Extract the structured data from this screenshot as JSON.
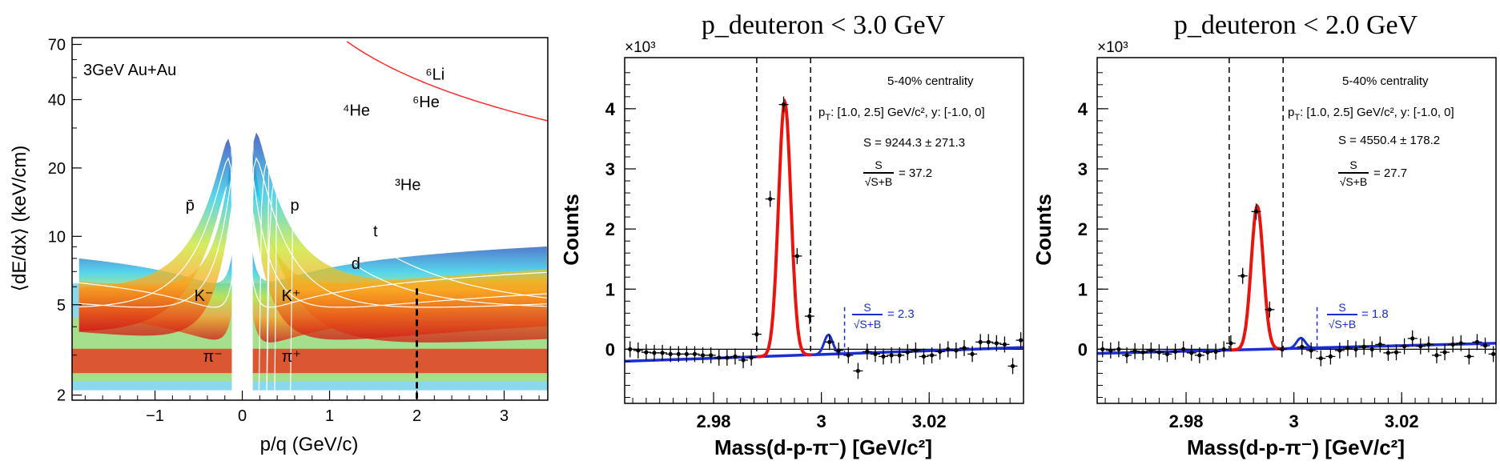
{
  "colors": {
    "fit_signal": "#e8150f",
    "fit_background": "#1a2ed1",
    "annotation_blue": "#1a2ed1",
    "data_points": "#000000",
    "reference_curve": "#ffffff",
    "li6_curve": "#ff2a2a"
  },
  "chart_data": [
    {
      "type": "heatmap",
      "title": "",
      "xlabel": "p/q (GeV/c)",
      "ylabel": "⟨dE/dx⟩ (keV/cm)",
      "xlim": [
        -1.95,
        3.5
      ],
      "ylim": [
        1.9,
        75
      ],
      "yscale": "log",
      "x_ticks": [
        -1,
        0,
        1,
        2,
        3
      ],
      "x_tick_labels": [
        "−1",
        "0",
        "1",
        "2",
        "3"
      ],
      "y_ticks": [
        2,
        5,
        10,
        20,
        40,
        70
      ],
      "y_tick_labels": [
        "2",
        "5",
        "10",
        "20",
        "40",
        "70"
      ],
      "colormap": "rainbow (blue low, red high)",
      "label": "3GeV Au+Au",
      "cut_line_x": 2.0,
      "bands": [
        {
          "name": "π⁻",
          "label_x": -0.45,
          "label_y": 2.8
        },
        {
          "name": "K⁻",
          "label_x": -0.55,
          "label_y": 5.2
        },
        {
          "name": "p̄",
          "label_x": -0.65,
          "label_y": 13
        },
        {
          "name": "π⁺",
          "label_x": 0.45,
          "label_y": 2.8
        },
        {
          "name": "K⁺",
          "label_x": 0.45,
          "label_y": 5.2
        },
        {
          "name": "p",
          "label_x": 0.55,
          "label_y": 13
        },
        {
          "name": "d",
          "label_x": 1.25,
          "label_y": 7.2
        },
        {
          "name": "t",
          "label_x": 1.5,
          "label_y": 10
        },
        {
          "name": "³He",
          "label_x": 1.75,
          "label_y": 16
        },
        {
          "name": "⁴He",
          "label_x": 1.15,
          "label_y": 34
        },
        {
          "name": "⁶He",
          "label_x": 1.95,
          "label_y": 37
        },
        {
          "name": "⁶Li",
          "label_x": 2.1,
          "label_y": 49
        }
      ]
    },
    {
      "type": "scatter",
      "title": "p_deuteron < 3.0 GeV",
      "xlabel": "Mass(d-p-π⁻) [GeV/c²]",
      "ylabel": "Counts",
      "y_multiplier": "×10³",
      "xlim": [
        2.9635,
        3.0375
      ],
      "ylim": [
        -0.9,
        4.85
      ],
      "x_ticks": [
        2.98,
        3.0,
        3.02
      ],
      "x_tick_labels": [
        "2.98",
        "3",
        "3.02"
      ],
      "y_ticks": [
        0,
        1,
        2,
        3,
        4
      ],
      "y_tick_labels": [
        "0",
        "1",
        "2",
        "3",
        "4"
      ],
      "signal_window": [
        2.988,
        2.998
      ],
      "side_window": [
        2.998,
        3.0043
      ],
      "signal_peak": {
        "amplitude": 4.22,
        "mean": 2.9932,
        "sigma": 0.00115,
        "label": "S/√(S+B) = 37.2"
      },
      "side_peak": {
        "amplitude": 0.32,
        "mean": 3.0013,
        "sigma": 0.0008,
        "label": "S/√(S+B) = 2.3"
      },
      "background": {
        "y_at_xmin": -0.2,
        "y_at_xmax": 0.03
      },
      "points": [
        [
          2.9645,
          0.0
        ],
        [
          2.966,
          -0.02
        ],
        [
          2.9675,
          -0.05
        ],
        [
          2.969,
          -0.06
        ],
        [
          2.9705,
          -0.06
        ],
        [
          2.972,
          -0.08
        ],
        [
          2.9735,
          -0.08
        ],
        [
          2.975,
          -0.08
        ],
        [
          2.9765,
          -0.08
        ],
        [
          2.978,
          -0.1
        ],
        [
          2.9795,
          -0.1
        ],
        [
          2.981,
          -0.14
        ],
        [
          2.9825,
          -0.14
        ],
        [
          2.984,
          -0.12
        ],
        [
          2.9855,
          -0.18
        ],
        [
          2.987,
          -0.14
        ],
        [
          2.988,
          0.25
        ],
        [
          2.9905,
          2.5
        ],
        [
          2.993,
          4.07
        ],
        [
          2.9955,
          1.55
        ],
        [
          2.9978,
          0.55
        ],
        [
          3.0015,
          0.12
        ],
        [
          3.0032,
          -0.02
        ],
        [
          3.005,
          -0.1
        ],
        [
          3.0068,
          -0.36
        ],
        [
          3.0085,
          -0.04
        ],
        [
          3.01,
          -0.08
        ],
        [
          3.0115,
          -0.12
        ],
        [
          3.013,
          -0.1
        ],
        [
          3.0145,
          -0.1
        ],
        [
          3.016,
          -0.05
        ],
        [
          3.0175,
          -0.02
        ],
        [
          3.019,
          -0.12
        ],
        [
          3.0205,
          -0.1
        ],
        [
          3.022,
          -0.04
        ],
        [
          3.0235,
          0.0
        ],
        [
          3.025,
          -0.02
        ],
        [
          3.0265,
          0.02
        ],
        [
          3.028,
          -0.08
        ],
        [
          3.0295,
          0.12
        ],
        [
          3.031,
          0.12
        ],
        [
          3.0325,
          0.1
        ],
        [
          3.034,
          0.08
        ],
        [
          3.0355,
          -0.28
        ],
        [
          3.037,
          0.15
        ]
      ],
      "annotations": {
        "centrality": "5-40% centrality",
        "kinematics_pt": "p",
        "kinematics_pt_sub": "T",
        "kinematics_rest": ": [1.0, 2.5] GeV/c², y: [-1.0, 0]",
        "signal": "S = 9244.3 ± 271.3",
        "ratio_num": "S",
        "ratio_den": "√S+B",
        "ratio_value": "= 37.2",
        "side_num": "S",
        "side_den": "√S+B",
        "side_value": "= 2.3"
      }
    },
    {
      "type": "scatter",
      "title": "p_deuteron < 2.0 GeV",
      "xlabel": "Mass(d-p-π⁻) [GeV/c²]",
      "ylabel": "Counts",
      "y_multiplier": "×10³",
      "xlim": [
        2.9635,
        3.0375
      ],
      "ylim": [
        -0.9,
        4.85
      ],
      "x_ticks": [
        2.98,
        3.0,
        3.02
      ],
      "x_tick_labels": [
        "2.98",
        "3",
        "3.02"
      ],
      "y_ticks": [
        0,
        1,
        2,
        3,
        4
      ],
      "y_tick_labels": [
        "0",
        "1",
        "2",
        "3",
        "4"
      ],
      "signal_window": [
        2.988,
        2.998
      ],
      "side_window": [
        2.998,
        3.0043
      ],
      "signal_peak": {
        "amplitude": 2.38,
        "mean": 2.9932,
        "sigma": 0.00112,
        "label": "S/√(S+B) = 27.7"
      },
      "side_peak": {
        "amplitude": 0.17,
        "mean": 3.0013,
        "sigma": 0.0008,
        "label": "S/√(S+B) = 1.8"
      },
      "background": {
        "y_at_xmin": -0.07,
        "y_at_xmax": 0.1
      },
      "points": [
        [
          2.9645,
          0.0
        ],
        [
          2.966,
          -0.02
        ],
        [
          2.9675,
          0.0
        ],
        [
          2.969,
          -0.1
        ],
        [
          2.9705,
          -0.03
        ],
        [
          2.972,
          -0.05
        ],
        [
          2.9735,
          -0.02
        ],
        [
          2.975,
          -0.05
        ],
        [
          2.9765,
          -0.08
        ],
        [
          2.978,
          -0.04
        ],
        [
          2.9795,
          0.0
        ],
        [
          2.981,
          -0.06
        ],
        [
          2.9825,
          -0.1
        ],
        [
          2.984,
          -0.05
        ],
        [
          2.9855,
          -0.04
        ],
        [
          2.987,
          0.0
        ],
        [
          2.9883,
          0.1
        ],
        [
          2.9905,
          1.22
        ],
        [
          2.993,
          2.29
        ],
        [
          2.9955,
          0.66
        ],
        [
          2.9978,
          0.0
        ],
        [
          3.0015,
          0.04
        ],
        [
          3.0032,
          -0.02
        ],
        [
          3.005,
          -0.15
        ],
        [
          3.0068,
          -0.12
        ],
        [
          3.0085,
          -0.02
        ],
        [
          3.01,
          0.02
        ],
        [
          3.0115,
          0.0
        ],
        [
          3.013,
          0.04
        ],
        [
          3.0145,
          0.0
        ],
        [
          3.016,
          0.08
        ],
        [
          3.0175,
          -0.06
        ],
        [
          3.019,
          -0.05
        ],
        [
          3.0205,
          0.05
        ],
        [
          3.022,
          0.18
        ],
        [
          3.0235,
          0.05
        ],
        [
          3.025,
          0.08
        ],
        [
          3.0265,
          -0.1
        ],
        [
          3.028,
          -0.05
        ],
        [
          3.0295,
          0.08
        ],
        [
          3.031,
          0.1
        ],
        [
          3.0325,
          -0.12
        ],
        [
          3.034,
          0.12
        ],
        [
          3.0355,
          0.06
        ],
        [
          3.037,
          -0.08
        ]
      ],
      "annotations": {
        "centrality": "5-40% centrality",
        "kinematics_pt": "p",
        "kinematics_pt_sub": "T",
        "kinematics_rest": ": [1.0, 2.5] GeV/c², y: [-1.0, 0]",
        "signal": "S = 4550.4 ± 178.2",
        "ratio_num": "S",
        "ratio_den": "√S+B",
        "ratio_value": "= 27.7",
        "side_num": "S",
        "side_den": "√S+B",
        "side_value": "= 1.8"
      }
    }
  ]
}
